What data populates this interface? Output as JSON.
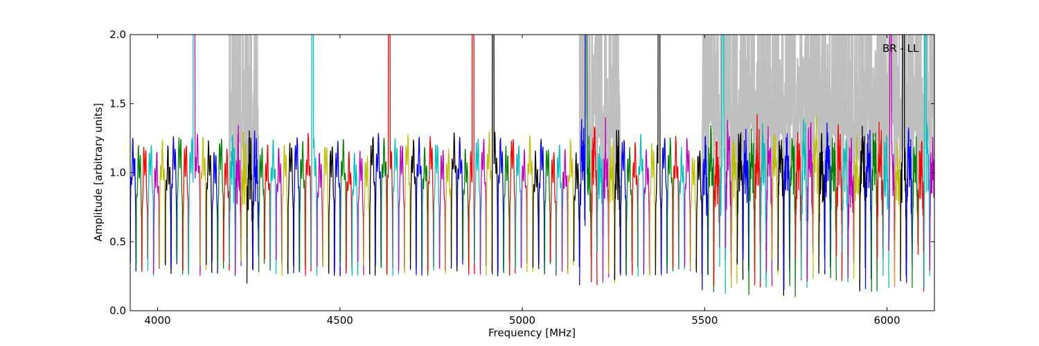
{
  "chart_data": {
    "type": "line",
    "title": "",
    "xlabel": "Frequency [MHz]",
    "ylabel": "Amplitude [arbitrary units]",
    "xlim": [
      3925,
      6130
    ],
    "ylim": [
      0.0,
      2.0
    ],
    "x_ticks": [
      4000,
      4500,
      5000,
      5500,
      6000
    ],
    "x_tick_labels": [
      "4000",
      "4500",
      "5000",
      "5500",
      "6000"
    ],
    "y_ticks": [
      0.0,
      0.5,
      1.0,
      1.5,
      2.0
    ],
    "y_tick_labels": [
      "0.0",
      "0.5",
      "1.0",
      "1.5",
      "2.0"
    ],
    "grid": false,
    "annotation": "BR - LL",
    "colors": {
      "raw": "#bfbfbf",
      "cycle": [
        "#0000ff",
        "#008000",
        "#ff0000",
        "#00bfbf",
        "#bf00bf",
        "#bfbf00",
        "#000000"
      ]
    },
    "channel_width_mhz": 16,
    "series_note_values": {
      "typical_passband_amplitude": [
        1.0,
        1.3
      ],
      "typical_edge_amplitude": [
        0.25,
        0.4
      ],
      "clipped_peaks_mhz": [
        4100,
        4425,
        4635,
        4865,
        4920,
        5175,
        5375,
        5550,
        6010,
        6045,
        6105
      ]
    }
  }
}
